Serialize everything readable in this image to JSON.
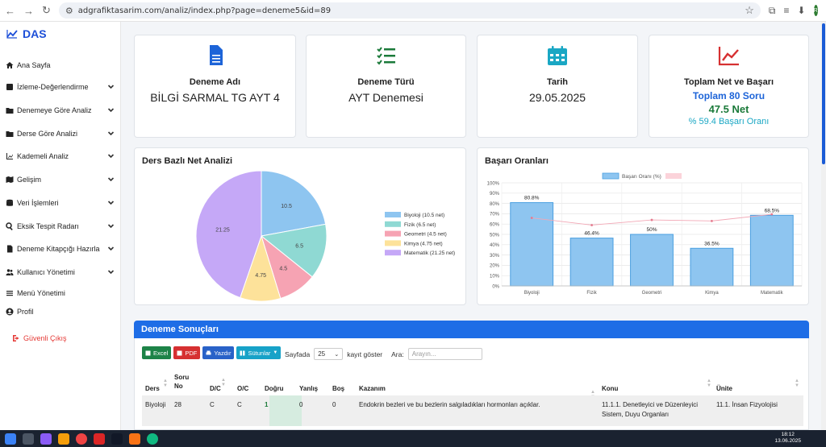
{
  "browser": {
    "url": "adgrafiktasarim.com/analiz/index.php?page=deneme5&id=89",
    "profile_initials": "R"
  },
  "sidebar": {
    "brand": "DAS",
    "items": [
      {
        "label": "Ana Sayfa"
      },
      {
        "label": "İzleme-Değerlendirme"
      },
      {
        "label": "Denemeye Göre Analiz"
      },
      {
        "label": "Derse Göre Analizi"
      },
      {
        "label": "Kademeli Analiz"
      },
      {
        "label": "Gelişim"
      },
      {
        "label": "Veri İşlemleri"
      },
      {
        "label": "Eksik Tespit Radarı"
      },
      {
        "label": "Deneme Kitapçığı Hazırla"
      },
      {
        "label": "Kullanıcı Yönetimi"
      },
      {
        "label": "Menü Yönetimi"
      },
      {
        "label": "Profil"
      }
    ],
    "logout": "Güvenli Çıkış"
  },
  "stats": {
    "deneme_adi": {
      "label": "Deneme Adı",
      "value": "BİLGİ SARMAL TG AYT 4"
    },
    "deneme_turu": {
      "label": "Deneme Türü",
      "value": "AYT Denemesi"
    },
    "tarih": {
      "label": "Tarih",
      "value": "29.05.2025"
    },
    "toplam": {
      "label": "Toplam Net ve Başarı",
      "line1": "Toplam 80 Soru",
      "line2": "47.5 Net",
      "line3": "% 59.4 Başarı Oranı"
    }
  },
  "colors": {
    "primary": "#1e6de6",
    "pie": [
      "#8ec5f0",
      "#8fd9d3",
      "#f6a3b3",
      "#fde29a",
      "#c5a8f7"
    ],
    "bar_fill": "#8ec5f0",
    "bar_stroke": "#4a9fe0",
    "line": "#f2a7b5"
  },
  "pie_panel": {
    "title": "Ders Bazlı Net Analizi"
  },
  "bar_panel": {
    "title": "Başarı Oranları"
  },
  "chart_data": [
    {
      "type": "pie",
      "title": "Ders Bazlı Net Analizi",
      "slices": [
        {
          "label": "Biyoloji",
          "legend": "Biyoloji (10.5 net)",
          "value": 10.5,
          "text": "10.5"
        },
        {
          "label": "Fizik",
          "legend": "Fizik (6.5 net)",
          "value": 6.5,
          "text": "6.5"
        },
        {
          "label": "Geometri",
          "legend": "Geometri (4.5 net)",
          "value": 4.5,
          "text": "4.5"
        },
        {
          "label": "Kimya",
          "legend": "Kimya (4.75 net)",
          "value": 4.75,
          "text": "4.75"
        },
        {
          "label": "Matematik",
          "legend": "Matematik (21.25 net)",
          "value": 21.25,
          "text": "21.25"
        }
      ],
      "legend_position": "right"
    },
    {
      "type": "bar",
      "title": "Başarı Oranları",
      "categories": [
        "Biyoloji",
        "Fizik",
        "Geometri",
        "Kimya",
        "Matematik"
      ],
      "series": [
        {
          "name": "Başarı Oranı (%)",
          "values": [
            80.8,
            46.4,
            50,
            36.5,
            68.5
          ],
          "labels": [
            "80.8%",
            "46.4%",
            "50%",
            "36.5%",
            "68.5%"
          ]
        },
        {
          "name": "",
          "type": "line",
          "values": [
            66,
            59,
            64,
            63,
            69.5
          ]
        }
      ],
      "ylim": [
        0,
        100
      ],
      "yticks": [
        "0%",
        "10%",
        "20%",
        "30%",
        "40%",
        "50%",
        "60%",
        "70%",
        "80%",
        "90%",
        "100%"
      ],
      "grid": true,
      "legend_position": "top"
    }
  ],
  "results": {
    "title": "Deneme Sonuçları",
    "buttons": {
      "excel": "Excel",
      "pdf": "PDF",
      "print": "Yazdır",
      "columns": "Sütunlar"
    },
    "page_size_label": "Sayfada",
    "page_size_value": "25",
    "page_size_suffix": "kayıt göster",
    "search_label": "Ara:",
    "search_placeholder": "Arayın...",
    "columns": [
      "Ders",
      "Soru No",
      "D/C",
      "O/C",
      "Doğru",
      "Yanlış",
      "Boş",
      "Kazanım",
      "Konu",
      "Ünite"
    ],
    "rows": [
      {
        "ders": "Biyoloji",
        "soru_no": "28",
        "dc": "C",
        "oc": "C",
        "dogru": "1",
        "yanlis": "0",
        "bos": "0",
        "kazanim": "Endokrin bezleri ve bu bezlerin salgıladıkları hormonları açıklar.",
        "konu": "11.1.1. Denetleyici ve Düzenleyici Sistem, Duyu Organları",
        "unite": "11.1. İnsan Fizyolojisi"
      }
    ]
  },
  "taskbar": {
    "time": "18:12",
    "date": "13.06.2025"
  }
}
